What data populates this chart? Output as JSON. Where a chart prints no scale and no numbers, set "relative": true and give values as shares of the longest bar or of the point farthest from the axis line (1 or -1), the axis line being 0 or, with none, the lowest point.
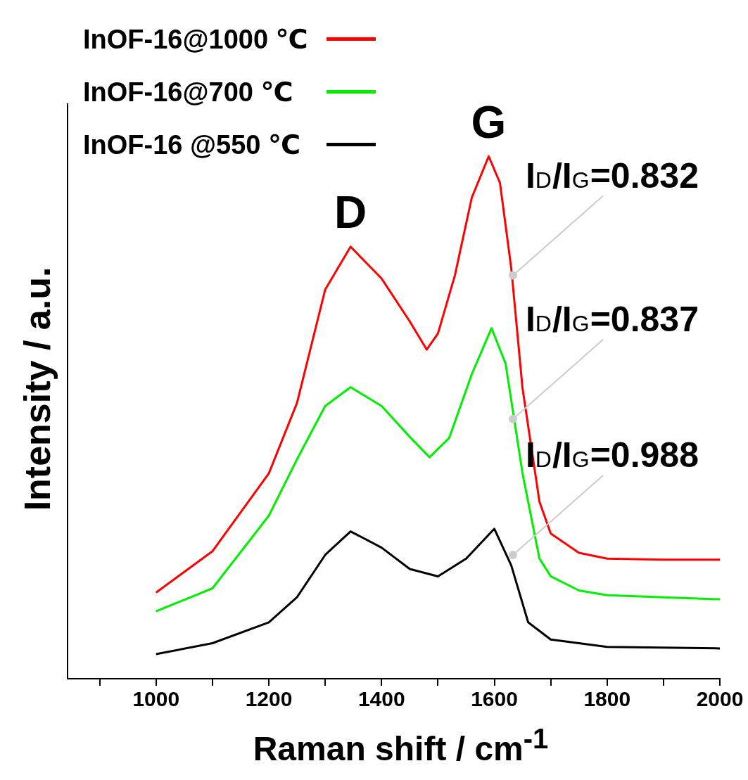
{
  "chart_data": {
    "type": "line",
    "relative": true,
    "xlabel": "Raman shift / cm$^{-1}$",
    "ylabel": "Intensity / a.u.",
    "xlim": [
      843,
      2000
    ],
    "xticks": [
      1000,
      1200,
      1400,
      1600,
      1800,
      2000,
      {
        "value": 900,
        "label": null
      },
      {
        "value": 1100,
        "label": null
      },
      {
        "value": 1300,
        "label": null
      },
      {
        "value": 1500,
        "label": null
      },
      {
        "value": 1700,
        "label": null
      },
      {
        "value": 1900,
        "label": null
      }
    ],
    "grid": false,
    "legend": "top left",
    "marker": "none",
    "line_style": "solid",
    "series": [
      {
        "name": "InOF-16@1000 ℃",
        "color": "#ff0000",
        "x": [
          1000,
          1100,
          1200,
          1250,
          1300,
          1345,
          1400,
          1450,
          1480,
          1500,
          1530,
          1560,
          1590,
          1610,
          1630,
          1650,
          1680,
          1700,
          1750,
          1800,
          1900,
          2000
        ],
        "values": [
          0.165,
          0.244,
          0.393,
          0.528,
          0.745,
          0.827,
          0.766,
          0.684,
          0.63,
          0.661,
          0.772,
          0.921,
          1.0,
          0.949,
          0.786,
          0.556,
          0.339,
          0.278,
          0.241,
          0.23,
          0.228,
          0.228
        ]
      },
      {
        "name": "InOF-16@700 ℃",
        "color": "#00ee00",
        "x": [
          1000,
          1100,
          1200,
          1250,
          1300,
          1345,
          1400,
          1450,
          1485,
          1520,
          1560,
          1595,
          1620,
          1650,
          1680,
          1700,
          1750,
          1800,
          2000
        ],
        "values": [
          0.129,
          0.173,
          0.312,
          0.42,
          0.522,
          0.558,
          0.522,
          0.463,
          0.424,
          0.461,
          0.583,
          0.671,
          0.603,
          0.393,
          0.23,
          0.196,
          0.169,
          0.16,
          0.152
        ]
      },
      {
        "name": "InOF-16 @550 ℃",
        "color": "#000000",
        "x": [
          1000,
          1100,
          1200,
          1250,
          1300,
          1345,
          1400,
          1450,
          1500,
          1550,
          1600,
          1630,
          1660,
          1700,
          1800,
          2000
        ],
        "values": [
          0.047,
          0.068,
          0.108,
          0.156,
          0.237,
          0.282,
          0.251,
          0.21,
          0.196,
          0.23,
          0.287,
          0.217,
          0.108,
          0.075,
          0.061,
          0.058
        ]
      }
    ],
    "annotations": [
      {
        "text": "D",
        "x": 1345,
        "y": 0.827
      },
      {
        "text": "G",
        "x": 1590,
        "y": 1.0
      },
      {
        "text": "I$_{D}$/I$_{G}$=0.832",
        "x": 1633,
        "y": 0.772
      },
      {
        "text": "I$_{D}$/I$_{G}$=0.837",
        "x": 1633,
        "y": 0.497
      },
      {
        "text": "I$_{D}$/I$_{G}$=0.988",
        "x": 1633,
        "y": 0.237
      }
    ]
  }
}
